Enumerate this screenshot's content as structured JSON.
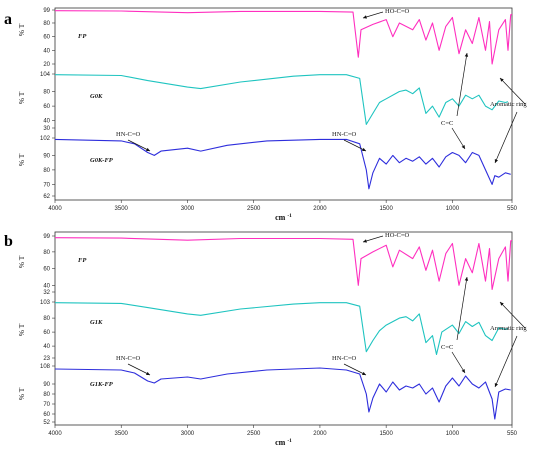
{
  "chart_data": [
    {
      "type": "line",
      "panel_label": "a",
      "xlabel": "cm",
      "xlabel_sup": "-1",
      "xlim": [
        4000,
        550
      ],
      "x_ticks": [
        4000,
        3500,
        3000,
        2500,
        2000,
        1500,
        1000,
        550
      ],
      "y_axis_title": "% T",
      "series": [
        {
          "name": "FP",
          "color": "#ff2fbf",
          "y_ticks": [
            99,
            80,
            60,
            40,
            20
          ],
          "points": [
            [
              4000,
              98
            ],
            [
              3500,
              97.5
            ],
            [
              3000,
              95
            ],
            [
              2600,
              97
            ],
            [
              2000,
              97
            ],
            [
              1750,
              96
            ],
            [
              1710,
              30
            ],
            [
              1690,
              70
            ],
            [
              1600,
              78
            ],
            [
              1500,
              85
            ],
            [
              1450,
              60
            ],
            [
              1400,
              80
            ],
            [
              1300,
              70
            ],
            [
              1250,
              85
            ],
            [
              1200,
              55
            ],
            [
              1150,
              80
            ],
            [
              1100,
              40
            ],
            [
              1050,
              75
            ],
            [
              1000,
              88
            ],
            [
              950,
              35
            ],
            [
              900,
              70
            ],
            [
              850,
              50
            ],
            [
              800,
              88
            ],
            [
              750,
              40
            ],
            [
              720,
              82
            ],
            [
              700,
              20
            ],
            [
              650,
              70
            ],
            [
              600,
              85
            ],
            [
              580,
              40
            ],
            [
              560,
              92
            ],
            [
              550,
              93
            ]
          ]
        },
        {
          "name": "G0K",
          "color": "#1fc4c0",
          "y_ticks": [
            104,
            80,
            60,
            40,
            30
          ],
          "points": [
            [
              4000,
              103
            ],
            [
              3500,
              102
            ],
            [
              3300,
              95
            ],
            [
              3000,
              86
            ],
            [
              2900,
              84
            ],
            [
              2600,
              93
            ],
            [
              2200,
              101
            ],
            [
              2000,
              103
            ],
            [
              1800,
              103
            ],
            [
              1700,
              98
            ],
            [
              1650,
              35
            ],
            [
              1600,
              50
            ],
            [
              1550,
              65
            ],
            [
              1500,
              70
            ],
            [
              1400,
              80
            ],
            [
              1350,
              82
            ],
            [
              1300,
              77
            ],
            [
              1250,
              85
            ],
            [
              1200,
              50
            ],
            [
              1150,
              60
            ],
            [
              1100,
              45
            ],
            [
              1050,
              65
            ],
            [
              1000,
              70
            ],
            [
              950,
              60
            ],
            [
              900,
              75
            ],
            [
              850,
              70
            ],
            [
              800,
              75
            ],
            [
              750,
              60
            ],
            [
              700,
              55
            ],
            [
              650,
              67
            ],
            [
              600,
              65
            ],
            [
              580,
              66
            ]
          ]
        },
        {
          "name": "G0K-FP",
          "color": "#2e2edc",
          "y_ticks": [
            102,
            90,
            80,
            70,
            62
          ],
          "points": [
            [
              4000,
              101
            ],
            [
              3500,
              100
            ],
            [
              3400,
              98
            ],
            [
              3300,
              92
            ],
            [
              3250,
              90
            ],
            [
              3200,
              93
            ],
            [
              3000,
              95
            ],
            [
              2900,
              93
            ],
            [
              2700,
              97
            ],
            [
              2400,
              100
            ],
            [
              2000,
              101
            ],
            [
              1800,
              101
            ],
            [
              1700,
              98
            ],
            [
              1650,
              80
            ],
            [
              1630,
              67
            ],
            [
              1600,
              78
            ],
            [
              1550,
              88
            ],
            [
              1500,
              84
            ],
            [
              1450,
              90
            ],
            [
              1400,
              85
            ],
            [
              1350,
              88
            ],
            [
              1300,
              86
            ],
            [
              1250,
              89
            ],
            [
              1200,
              84
            ],
            [
              1150,
              88
            ],
            [
              1100,
              82
            ],
            [
              1050,
              89
            ],
            [
              1000,
              92
            ],
            [
              950,
              90
            ],
            [
              900,
              85
            ],
            [
              850,
              92
            ],
            [
              800,
              90
            ],
            [
              750,
              80
            ],
            [
              700,
              70
            ],
            [
              680,
              76
            ],
            [
              650,
              75
            ],
            [
              600,
              78
            ],
            [
              560,
              77
            ]
          ]
        }
      ],
      "annotations": [
        "HO-C=O",
        "HN-C=O",
        "HN-C=O",
        "C=C",
        "Aromatic ring"
      ]
    },
    {
      "type": "line",
      "panel_label": "b",
      "xlabel": "cm",
      "xlabel_sup": "-1",
      "xlim": [
        4000,
        550
      ],
      "x_ticks": [
        4000,
        3500,
        3000,
        2500,
        2000,
        1500,
        1000,
        550
      ],
      "y_axis_title": "% T",
      "series": [
        {
          "name": "FP",
          "color": "#ff2fbf",
          "y_ticks": [
            99,
            80,
            60,
            40,
            32
          ],
          "points": [
            [
              4000,
              97
            ],
            [
              3500,
              96.5
            ],
            [
              3000,
              94
            ],
            [
              2600,
              96
            ],
            [
              2000,
              96
            ],
            [
              1750,
              95
            ],
            [
              1710,
              40
            ],
            [
              1690,
              72
            ],
            [
              1600,
              80
            ],
            [
              1500,
              88
            ],
            [
              1450,
              62
            ],
            [
              1400,
              82
            ],
            [
              1300,
              72
            ],
            [
              1250,
              86
            ],
            [
              1200,
              58
            ],
            [
              1150,
              82
            ],
            [
              1100,
              45
            ],
            [
              1050,
              78
            ],
            [
              1000,
              90
            ],
            [
              950,
              40
            ],
            [
              900,
              72
            ],
            [
              850,
              55
            ],
            [
              800,
              90
            ],
            [
              750,
              45
            ],
            [
              720,
              84
            ],
            [
              700,
              35
            ],
            [
              650,
              72
            ],
            [
              600,
              86
            ],
            [
              580,
              45
            ],
            [
              560,
              93
            ],
            [
              550,
              94
            ]
          ]
        },
        {
          "name": "G1K",
          "color": "#1fc4c0",
          "y_ticks": [
            103,
            80,
            60,
            40,
            23
          ],
          "points": [
            [
              4000,
              102
            ],
            [
              3500,
              101
            ],
            [
              3300,
              95
            ],
            [
              3000,
              86
            ],
            [
              2900,
              84
            ],
            [
              2600,
              93
            ],
            [
              2200,
              100
            ],
            [
              2000,
              102
            ],
            [
              1800,
              102
            ],
            [
              1700,
              97
            ],
            [
              1650,
              32
            ],
            [
              1600,
              48
            ],
            [
              1550,
              62
            ],
            [
              1500,
              70
            ],
            [
              1400,
              80
            ],
            [
              1350,
              82
            ],
            [
              1300,
              76
            ],
            [
              1250,
              86
            ],
            [
              1200,
              45
            ],
            [
              1150,
              55
            ],
            [
              1120,
              28
            ],
            [
              1080,
              60
            ],
            [
              1000,
              70
            ],
            [
              950,
              58
            ],
            [
              900,
              75
            ],
            [
              850,
              68
            ],
            [
              800,
              74
            ],
            [
              750,
              55
            ],
            [
              700,
              48
            ],
            [
              650,
              66
            ],
            [
              600,
              64
            ],
            [
              580,
              65
            ]
          ]
        },
        {
          "name": "G1K-FP",
          "color": "#2e2edc",
          "y_ticks": [
            108,
            90,
            80,
            70,
            60,
            52
          ],
          "points": [
            [
              4000,
              105
            ],
            [
              3500,
              104
            ],
            [
              3400,
              101
            ],
            [
              3300,
              93
            ],
            [
              3250,
              91
            ],
            [
              3200,
              95
            ],
            [
              3000,
              97
            ],
            [
              2900,
              95
            ],
            [
              2700,
              100
            ],
            [
              2400,
              104
            ],
            [
              2000,
              106
            ],
            [
              1800,
              104
            ],
            [
              1700,
              100
            ],
            [
              1650,
              80
            ],
            [
              1630,
              62
            ],
            [
              1600,
              76
            ],
            [
              1550,
              90
            ],
            [
              1500,
              82
            ],
            [
              1450,
              92
            ],
            [
              1400,
              84
            ],
            [
              1350,
              88
            ],
            [
              1300,
              86
            ],
            [
              1250,
              90
            ],
            [
              1200,
              80
            ],
            [
              1150,
              86
            ],
            [
              1100,
              72
            ],
            [
              1050,
              88
            ],
            [
              1000,
              96
            ],
            [
              950,
              88
            ],
            [
              900,
              98
            ],
            [
              850,
              90
            ],
            [
              800,
              86
            ],
            [
              750,
              92
            ],
            [
              700,
              75
            ],
            [
              680,
              55
            ],
            [
              650,
              82
            ],
            [
              600,
              85
            ],
            [
              560,
              84
            ]
          ]
        }
      ],
      "annotations": [
        "HO-C=O",
        "HN-C=O",
        "HN-C=O",
        "C=C",
        "Aromatic ring"
      ]
    }
  ]
}
